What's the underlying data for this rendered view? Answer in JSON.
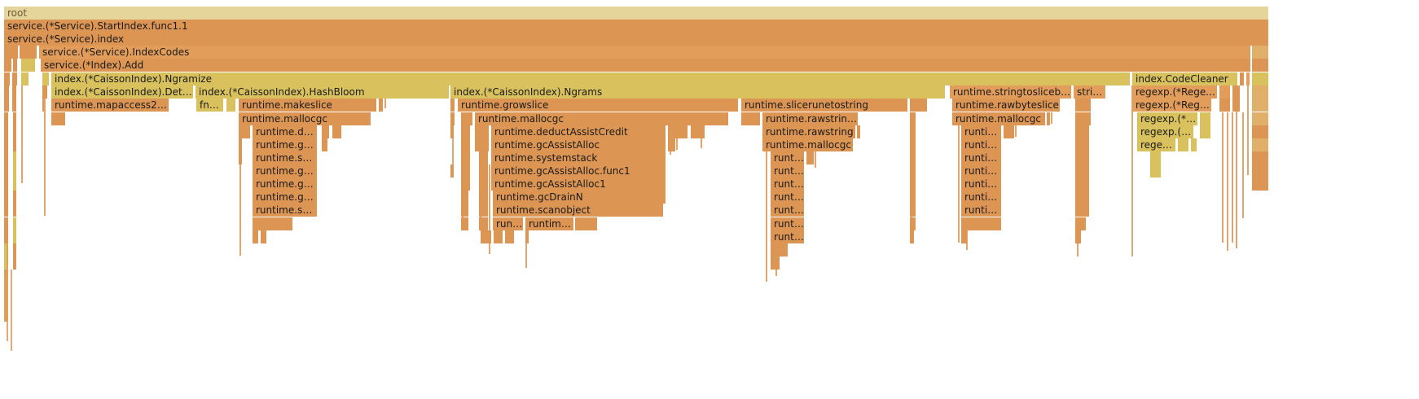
{
  "palette": {
    "root": "#e6d59a",
    "orange_dark": "#dc9553",
    "orange_light": "#e39d5a",
    "yellow": "#d9c15e",
    "tan": "#e0b06a"
  },
  "frames": [
    {
      "label": "root"
    },
    {
      "label": "service.(*Service).StartIndex.func1.1"
    },
    {
      "label": "service.(*Service).index"
    },
    {
      "label": "service.(*Service).IndexCodes"
    },
    {
      "label": "service.(*Index).Add"
    },
    {
      "label": "index.(*CaissonIndex).Ngramize"
    },
    {
      "label": "index.CodeCleaner"
    },
    {
      "label": "index.(*CaissonIndex).Deter…"
    },
    {
      "label": "index.(*CaissonIndex).HashBloom"
    },
    {
      "label": "index.(*CaissonIndex).Ngrams"
    },
    {
      "label": "runtime.stringtoslicebyte"
    },
    {
      "label": "strin…"
    },
    {
      "label": "regexp.(*Regex…"
    },
    {
      "label": "runtime.mapaccess2_f…"
    },
    {
      "label": "fnv…"
    },
    {
      "label": "runtime.makeslice"
    },
    {
      "label": "runtime.growslice"
    },
    {
      "label": "runtime.slicerunetostring"
    },
    {
      "label": "runtime.rawbyteslice"
    },
    {
      "label": "regexp.(*Regex…"
    },
    {
      "label": "runtime.mallocgc"
    },
    {
      "label": "runtime.mallocgc"
    },
    {
      "label": "runtime.rawstringt…"
    },
    {
      "label": "runtime.mallocgc"
    },
    {
      "label": "regexp.(*R…"
    },
    {
      "label": "runtime.ded…"
    },
    {
      "label": "runtime.deductAssistCredit"
    },
    {
      "label": "runtime.rawstring"
    },
    {
      "label": "runtim…"
    },
    {
      "label": "regexp.(*…"
    },
    {
      "label": "runtime.gc…"
    },
    {
      "label": "runtime.gcAssistAlloc"
    },
    {
      "label": "runtime.mallocgc"
    },
    {
      "label": "runti…"
    },
    {
      "label": "regex…"
    },
    {
      "label": "runtime.sys…"
    },
    {
      "label": "runtime.systemstack"
    },
    {
      "label": "runti…"
    },
    {
      "label": "runti…"
    },
    {
      "label": "runtime.gc…"
    },
    {
      "label": "runtime.gcAssistAlloc.func1"
    },
    {
      "label": "runti…"
    },
    {
      "label": "runti…"
    },
    {
      "label": "runtime.gc…"
    },
    {
      "label": "runtime.gcAssistAlloc1"
    },
    {
      "label": "runti…"
    },
    {
      "label": "runti…"
    },
    {
      "label": "runtime.gc…"
    },
    {
      "label": "runtime.gcDrainN"
    },
    {
      "label": "runti…"
    },
    {
      "label": "runti…"
    },
    {
      "label": "runtime.sc…"
    },
    {
      "label": "runtime.scanobject"
    },
    {
      "label": "runti…"
    },
    {
      "label": "runti…"
    },
    {
      "label": "runt…"
    },
    {
      "label": "runtime…"
    },
    {
      "label": "runti…"
    },
    {
      "label": "runti…"
    }
  ]
}
